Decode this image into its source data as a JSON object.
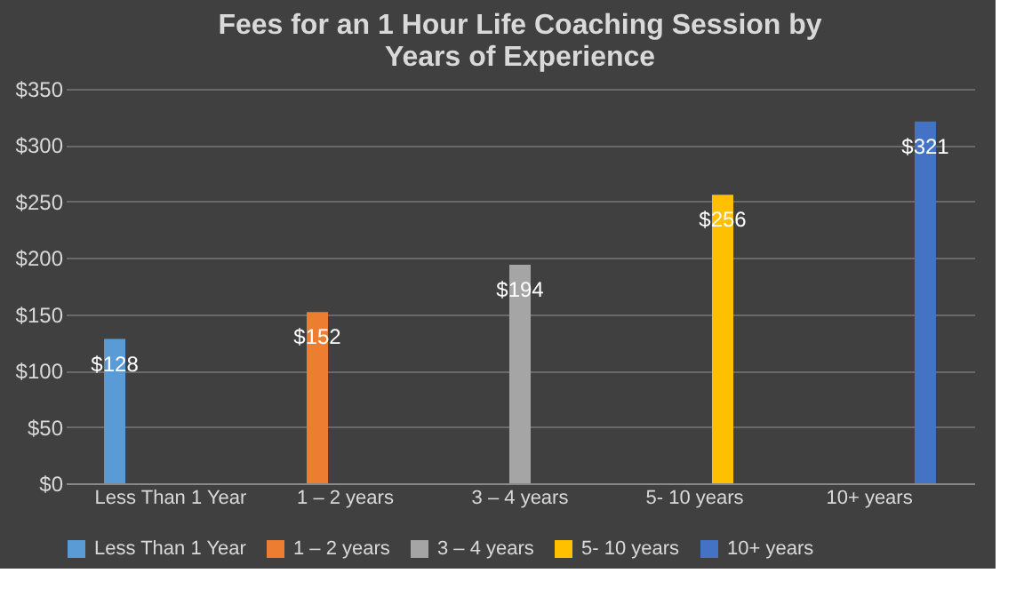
{
  "chart_data": {
    "type": "bar",
    "title": "Fees for an 1 Hour Life Coaching Session by Years of Experience",
    "categories": [
      "Less Than 1 Year",
      "1 – 2 years",
      "3 – 4 years",
      "5- 10 years",
      "10+ years"
    ],
    "series": [
      {
        "name": "Less Than 1 Year",
        "color": "#5b9bd5",
        "values": [
          128,
          null,
          null,
          null,
          null
        ],
        "value_labels": [
          "$128",
          null,
          null,
          null,
          null
        ]
      },
      {
        "name": "1 – 2 years",
        "color": "#ed7d31",
        "values": [
          null,
          152,
          null,
          null,
          null
        ],
        "value_labels": [
          null,
          "$152",
          null,
          null,
          null
        ]
      },
      {
        "name": "3 – 4 years",
        "color": "#a5a5a5",
        "values": [
          null,
          null,
          194,
          null,
          null
        ],
        "value_labels": [
          null,
          null,
          "$194",
          null,
          null
        ]
      },
      {
        "name": "5- 10 years",
        "color": "#ffc000",
        "values": [
          null,
          null,
          null,
          256,
          null
        ],
        "value_labels": [
          null,
          null,
          null,
          "$256",
          null
        ]
      },
      {
        "name": "10+ years",
        "color": "#4472c4",
        "values": [
          null,
          null,
          null,
          null,
          321
        ],
        "value_labels": [
          null,
          null,
          null,
          null,
          "$321"
        ]
      }
    ],
    "ylim": [
      0,
      350
    ],
    "yticks": [
      {
        "value": 0,
        "label": "$0"
      },
      {
        "value": 50,
        "label": "$50"
      },
      {
        "value": 100,
        "label": "$100"
      },
      {
        "value": 150,
        "label": "$150"
      },
      {
        "value": 200,
        "label": "$200"
      },
      {
        "value": 250,
        "label": "$250"
      },
      {
        "value": 300,
        "label": "$300"
      },
      {
        "value": 350,
        "label": "$350"
      }
    ],
    "grid": "y",
    "legend": "bottom"
  }
}
